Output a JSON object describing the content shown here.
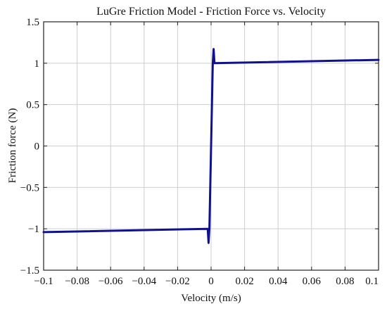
{
  "chart_data": {
    "type": "line",
    "title": "LuGre Friction Model - Friction Force vs. Velocity",
    "xlabel": "Velocity (m/s)",
    "ylabel": "Friction force (N)",
    "xlim": [
      -0.1,
      0.1
    ],
    "ylim": [
      -1.5,
      1.5
    ],
    "xticks": [
      -0.1,
      -0.08,
      -0.06,
      -0.04,
      -0.02,
      0,
      0.02,
      0.04,
      0.06,
      0.08,
      0.1
    ],
    "xtick_labels": [
      "−0.1",
      "−0.08",
      "−0.06",
      "−0.04",
      "−0.02",
      "0",
      "0.02",
      "0.04",
      "0.06",
      "0.08",
      "0.1"
    ],
    "yticks": [
      -1.5,
      -1,
      -0.5,
      0,
      0.5,
      1,
      1.5
    ],
    "ytick_labels": [
      "−1.5",
      "−1",
      "−0.5",
      "0",
      "0.5",
      "1",
      "1.5"
    ],
    "grid": true,
    "line_color": "#10128c",
    "series": [
      {
        "x": [
          -0.1,
          -0.002,
          -0.0015,
          -0.001,
          0.001,
          0.0015,
          0.002,
          0.1
        ],
        "y": [
          -1.04,
          -1.0,
          -1.17,
          -1.0,
          1.0,
          1.17,
          1.0,
          1.04
        ]
      }
    ]
  }
}
